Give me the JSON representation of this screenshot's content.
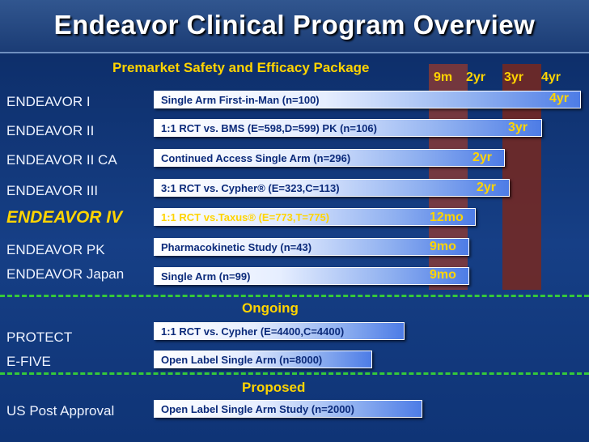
{
  "title": "Endeavor Clinical Program Overview",
  "sections": {
    "premarket": "Premarket Safety and Efficacy Package",
    "ongoing": "Ongoing",
    "proposed": "Proposed"
  },
  "timeline_labels": [
    "9m",
    "2yr",
    "3yr",
    "4yr"
  ],
  "trials": [
    {
      "name": "ENDEAVOR I",
      "bar": "Single Arm First-in-Man (n=100)",
      "end": "4yr"
    },
    {
      "name": "ENDEAVOR II",
      "bar": "1:1 RCT vs. BMS (E=598,D=599) PK (n=106)",
      "end": "3yr"
    },
    {
      "name": "ENDEAVOR II CA",
      "bar": "Continued Access Single Arm (n=296)",
      "end": "2yr"
    },
    {
      "name": "ENDEAVOR III",
      "bar": "3:1 RCT vs. Cypher® (E=323,C=113)",
      "end": "2yr"
    },
    {
      "name": "ENDEAVOR IV",
      "bar": "1:1 RCT vs.Taxus® (E=773,T=775)",
      "end": "12mo"
    },
    {
      "name": "ENDEAVOR PK",
      "bar": "Pharmacokinetic Study (n=43)",
      "end": "9mo"
    },
    {
      "name": "ENDEAVOR Japan",
      "bar": "Single Arm (n=99)",
      "end": "9mo"
    }
  ],
  "ongoing_trials": [
    {
      "name": "PROTECT",
      "bar": "1:1 RCT vs. Cypher (E=4400,C=4400)"
    },
    {
      "name": "E-FIVE",
      "bar": "Open Label Single Arm (n=8000)"
    }
  ],
  "proposed_trials": [
    {
      "name": "US Post Approval",
      "bar": "Open Label Single Arm Study (n=2000)"
    }
  ],
  "colors": {
    "background": "#163f86",
    "highlight": "#ffd400",
    "divider": "#35c93a",
    "timeline_column": "#7a2e1c"
  }
}
